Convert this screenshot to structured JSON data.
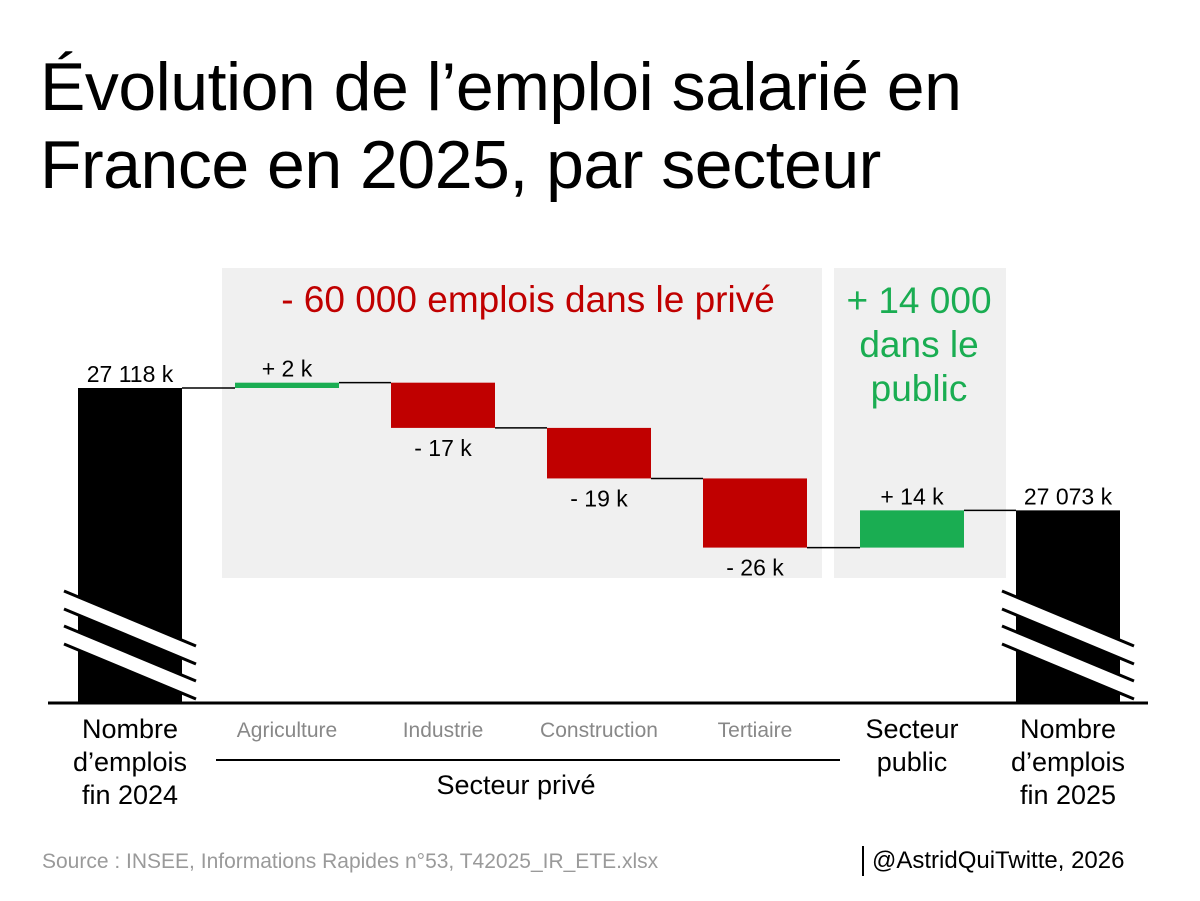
{
  "title": "Évolution de l’emploi salarié en France en 2025, par secteur",
  "source": "Source : INSEE, Informations Rapides n°53, T42025_IR_ETE.xlsx",
  "credit": "@AstridQuiTwitte, 2026",
  "colors": {
    "total": "#000000",
    "increase": "#1aad52",
    "decrease": "#c00000",
    "panel": "#f0f0f0",
    "category_muted": "#888888"
  },
  "chart_data": {
    "type": "bar",
    "subtype": "waterfall",
    "unit": "k",
    "baseline_break": true,
    "categories": [
      "Nombre d’emplois fin 2024",
      "Agriculture",
      "Industrie",
      "Construction",
      "Tertiaire",
      "Secteur public",
      "Nombre d’emplois fin 2025"
    ],
    "values": [
      27118,
      2,
      -17,
      -19,
      -26,
      14,
      27073
    ],
    "kinds": [
      "total",
      "delta",
      "delta",
      "delta",
      "delta",
      "delta",
      "total"
    ],
    "value_labels": [
      "27 118 k",
      "+ 2 k",
      "- 17 k",
      "- 19 k",
      "- 26 k",
      "+ 14 k",
      "27 073 k"
    ],
    "category_labels": [
      [
        "Nombre",
        "d’emplois",
        "fin 2024"
      ],
      [
        "Agriculture"
      ],
      [
        "Industrie"
      ],
      [
        "Construction"
      ],
      [
        "Tertiaire"
      ],
      [
        "Secteur",
        "public"
      ],
      [
        "Nombre",
        "d’emplois",
        "fin 2025"
      ]
    ],
    "groups": [
      {
        "label": "Secteur privé",
        "categories": [
          "Agriculture",
          "Industrie",
          "Construction",
          "Tertiaire"
        ]
      }
    ],
    "annotations": [
      {
        "text": "- 60 000 emplois dans le privé",
        "lines": [
          "- 60 000 emplois dans le privé"
        ],
        "color": "#c00000"
      },
      {
        "text": "+ 14 000 dans le public",
        "lines": [
          "+ 14 000",
          "dans le",
          "public"
        ],
        "color": "#1aad52"
      }
    ]
  }
}
